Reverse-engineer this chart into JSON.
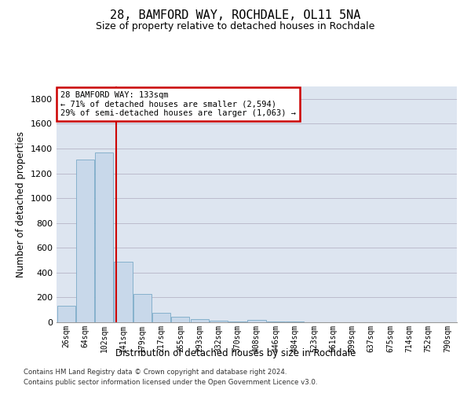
{
  "title": "28, BAMFORD WAY, ROCHDALE, OL11 5NA",
  "subtitle": "Size of property relative to detached houses in Rochdale",
  "xlabel": "Distribution of detached houses by size in Rochdale",
  "ylabel": "Number of detached properties",
  "bar_color": "#c8d8ea",
  "bar_edge_color": "#7aaac8",
  "categories": [
    "26sqm",
    "64sqm",
    "102sqm",
    "141sqm",
    "179sqm",
    "217sqm",
    "255sqm",
    "293sqm",
    "332sqm",
    "370sqm",
    "408sqm",
    "446sqm",
    "484sqm",
    "523sqm",
    "561sqm",
    "599sqm",
    "637sqm",
    "675sqm",
    "714sqm",
    "752sqm",
    "790sqm"
  ],
  "values": [
    135,
    1310,
    1365,
    485,
    225,
    75,
    45,
    25,
    15,
    5,
    20,
    5,
    5,
    0,
    0,
    0,
    0,
    0,
    0,
    0,
    0
  ],
  "ylim": [
    0,
    1900
  ],
  "yticks": [
    0,
    200,
    400,
    600,
    800,
    1000,
    1200,
    1400,
    1600,
    1800
  ],
  "property_line_x": 2.62,
  "annotation_title": "28 BAMFORD WAY: 133sqm",
  "annotation_line1": "← 71% of detached houses are smaller (2,594)",
  "annotation_line2": "29% of semi-detached houses are larger (1,063) →",
  "annotation_box_color": "#ffffff",
  "annotation_box_edge": "#cc0000",
  "vline_color": "#cc0000",
  "footer1": "Contains HM Land Registry data © Crown copyright and database right 2024.",
  "footer2": "Contains public sector information licensed under the Open Government Licence v3.0.",
  "grid_color": "#bbbbcc",
  "background_color": "#dde5f0"
}
